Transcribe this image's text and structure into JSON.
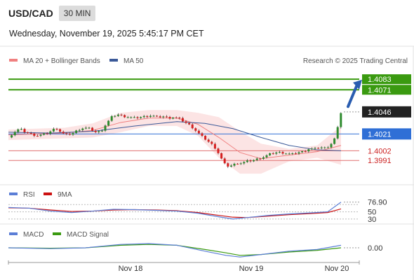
{
  "header": {
    "symbol": "USD/CAD",
    "timeframe": "30 MIN",
    "datetime": "Wednesday, November 19, 2025 5:45:17 PM CET"
  },
  "attribution": "Research © 2025 Trading Central",
  "colors": {
    "resistance": "#3a9a10",
    "pivot": "#2f6fd6",
    "support": "#e07070",
    "candle_up": "#2e8b2e",
    "candle_down": "#d62020",
    "ma20_band": "#f08080",
    "ma50": "#3b5998",
    "rsi": "#5b7ed6",
    "rsi_ma": "#cc1111",
    "macd": "#5b7ed6",
    "macd_signal": "#3a9a10",
    "arrow": "#2a5db0"
  },
  "chart_data": [
    {
      "type": "candlestick",
      "legend": [
        {
          "name": "MA 20 + Bollinger Bands",
          "color": "#f08080"
        },
        {
          "name": "MA 50",
          "color": "#3b5998"
        }
      ],
      "x_ticks": [
        "Nov 18",
        "Nov 19",
        "Nov 20"
      ],
      "ylim": [
        1.3965,
        1.4095
      ],
      "levels": [
        {
          "label": "1.4083",
          "value": 1.4083,
          "kind": "resistance"
        },
        {
          "label": "1.4071",
          "value": 1.4071,
          "kind": "resistance"
        },
        {
          "label": "1.4046",
          "value": 1.4046,
          "kind": "last"
        },
        {
          "label": "1.4021",
          "value": 1.4021,
          "kind": "pivot"
        },
        {
          "label": "1.4002",
          "value": 1.4002,
          "kind": "support"
        },
        {
          "label": "1.3991",
          "value": 1.3991,
          "kind": "support"
        }
      ],
      "close_path": [
        [
          0,
          1.4017
        ],
        [
          8,
          1.4023
        ],
        [
          16,
          1.4027
        ],
        [
          24,
          1.4023
        ],
        [
          32,
          1.4021
        ],
        [
          40,
          1.4019
        ],
        [
          48,
          1.402
        ],
        [
          56,
          1.4022
        ],
        [
          62,
          1.4025
        ],
        [
          68,
          1.4028
        ],
        [
          76,
          1.4022
        ],
        [
          84,
          1.402
        ],
        [
          92,
          1.4022
        ],
        [
          100,
          1.4026
        ],
        [
          108,
          1.4028
        ],
        [
          116,
          1.4027
        ],
        [
          124,
          1.4023
        ],
        [
          132,
          1.4024
        ],
        [
          140,
          1.4033
        ],
        [
          148,
          1.4041
        ],
        [
          156,
          1.4043
        ],
        [
          164,
          1.4041
        ],
        [
          172,
          1.404
        ],
        [
          180,
          1.4039
        ],
        [
          188,
          1.404
        ],
        [
          196,
          1.4041
        ],
        [
          204,
          1.4042
        ],
        [
          212,
          1.404
        ],
        [
          220,
          1.4041
        ],
        [
          228,
          1.4039
        ],
        [
          236,
          1.404
        ],
        [
          244,
          1.4038
        ],
        [
          252,
          1.4034
        ],
        [
          260,
          1.403
        ],
        [
          268,
          1.4024
        ],
        [
          276,
          1.4018
        ],
        [
          284,
          1.4013
        ],
        [
          290,
          1.4009
        ],
        [
          296,
          1.4004
        ],
        [
          302,
          1.3995
        ],
        [
          308,
          1.3987
        ],
        [
          314,
          1.3984
        ],
        [
          320,
          1.3986
        ],
        [
          326,
          1.3988
        ],
        [
          332,
          1.3988
        ],
        [
          340,
          1.399
        ],
        [
          348,
          1.3991
        ],
        [
          356,
          1.3993
        ],
        [
          364,
          1.3995
        ],
        [
          372,
          1.3998
        ],
        [
          380,
          1.4
        ],
        [
          388,
          1.4
        ],
        [
          396,
          1.3999
        ],
        [
          404,
          1.3998
        ],
        [
          412,
          1.4
        ],
        [
          420,
          1.4001
        ],
        [
          428,
          1.4004
        ],
        [
          436,
          1.4004
        ],
        [
          444,
          1.4006
        ],
        [
          452,
          1.4005
        ],
        [
          458,
          1.4008
        ],
        [
          464,
          1.4014
        ],
        [
          470,
          1.403
        ],
        [
          474,
          1.4046
        ]
      ],
      "ma20": [
        [
          0,
          1.402
        ],
        [
          40,
          1.4021
        ],
        [
          80,
          1.4022
        ],
        [
          120,
          1.4025
        ],
        [
          160,
          1.4034
        ],
        [
          200,
          1.4039
        ],
        [
          240,
          1.4039
        ],
        [
          270,
          1.4032
        ],
        [
          300,
          1.4017
        ],
        [
          330,
          1.4
        ],
        [
          360,
          1.3993
        ],
        [
          400,
          1.3997
        ],
        [
          440,
          1.4001
        ],
        [
          474,
          1.4008
        ]
      ],
      "bb_upper": [
        [
          0,
          1.4026
        ],
        [
          40,
          1.4027
        ],
        [
          80,
          1.4028
        ],
        [
          120,
          1.4033
        ],
        [
          160,
          1.4045
        ],
        [
          200,
          1.4048
        ],
        [
          240,
          1.4048
        ],
        [
          270,
          1.4045
        ],
        [
          300,
          1.404
        ],
        [
          330,
          1.4024
        ],
        [
          360,
          1.401
        ],
        [
          400,
          1.4004
        ],
        [
          440,
          1.4008
        ],
        [
          474,
          1.403
        ]
      ],
      "bb_lower": [
        [
          0,
          1.4014
        ],
        [
          40,
          1.4015
        ],
        [
          80,
          1.4016
        ],
        [
          120,
          1.4017
        ],
        [
          160,
          1.4023
        ],
        [
          200,
          1.403
        ],
        [
          240,
          1.403
        ],
        [
          270,
          1.4019
        ],
        [
          300,
          1.3994
        ],
        [
          330,
          1.3976
        ],
        [
          360,
          1.3976
        ],
        [
          400,
          1.399
        ],
        [
          440,
          1.3994
        ],
        [
          474,
          1.3986
        ]
      ],
      "ma50": [
        [
          0,
          1.4023
        ],
        [
          60,
          1.4022
        ],
        [
          120,
          1.4024
        ],
        [
          180,
          1.403
        ],
        [
          240,
          1.4035
        ],
        [
          280,
          1.4033
        ],
        [
          320,
          1.4027
        ],
        [
          360,
          1.4017
        ],
        [
          400,
          1.4008
        ],
        [
          440,
          1.4003
        ],
        [
          474,
          1.4002
        ]
      ]
    },
    {
      "type": "line",
      "legend": [
        {
          "name": "RSI",
          "color": "#5b7ed6"
        },
        {
          "name": "9MA",
          "color": "#cc1111"
        }
      ],
      "ylim": [
        20,
        90
      ],
      "y_ticks": [
        "76.90",
        "50",
        "30"
      ],
      "series": [
        {
          "name": "RSI",
          "points": [
            [
              0,
              62
            ],
            [
              30,
              60
            ],
            [
              60,
              52
            ],
            [
              90,
              48
            ],
            [
              120,
              52
            ],
            [
              150,
              57
            ],
            [
              180,
              56
            ],
            [
              210,
              54
            ],
            [
              240,
              52
            ],
            [
              270,
              46
            ],
            [
              300,
              36
            ],
            [
              320,
              30
            ],
            [
              340,
              34
            ],
            [
              370,
              40
            ],
            [
              400,
              44
            ],
            [
              430,
              47
            ],
            [
              455,
              50
            ],
            [
              474,
              76.9
            ]
          ]
        },
        {
          "name": "9MA",
          "points": [
            [
              0,
              61
            ],
            [
              30,
              60
            ],
            [
              60,
              55
            ],
            [
              90,
              51
            ],
            [
              120,
              52
            ],
            [
              150,
              55
            ],
            [
              180,
              56
            ],
            [
              210,
              55
            ],
            [
              240,
              53
            ],
            [
              270,
              48
            ],
            [
              300,
              40
            ],
            [
              320,
              35
            ],
            [
              340,
              34
            ],
            [
              370,
              38
            ],
            [
              400,
              42
            ],
            [
              430,
              45
            ],
            [
              455,
              48
            ],
            [
              474,
              58
            ]
          ]
        }
      ]
    },
    {
      "type": "line",
      "legend": [
        {
          "name": "MACD",
          "color": "#5b7ed6"
        },
        {
          "name": "MACD Signal",
          "color": "#3a9a10"
        }
      ],
      "ylim": [
        -0.0015,
        0.001
      ],
      "y_ticks": [
        "0.00"
      ],
      "series": [
        {
          "name": "MACD",
          "points": [
            [
              0,
              0.0
            ],
            [
              60,
              -0.0001
            ],
            [
              110,
              0.0
            ],
            [
              160,
              0.0004
            ],
            [
              200,
              0.0005
            ],
            [
              240,
              0.0003
            ],
            [
              280,
              -0.0004
            ],
            [
              310,
              -0.0009
            ],
            [
              330,
              -0.0011
            ],
            [
              360,
              -0.0008
            ],
            [
              400,
              -0.0004
            ],
            [
              440,
              -0.0002
            ],
            [
              474,
              0.0003
            ]
          ]
        },
        {
          "name": "MACD Signal",
          "points": [
            [
              0,
              0.0
            ],
            [
              60,
              -5e-05
            ],
            [
              110,
              0.0
            ],
            [
              160,
              0.0003
            ],
            [
              200,
              0.0004
            ],
            [
              240,
              0.0003
            ],
            [
              280,
              -0.0002
            ],
            [
              310,
              -0.0006
            ],
            [
              330,
              -0.0009
            ],
            [
              360,
              -0.0008
            ],
            [
              400,
              -0.0005
            ],
            [
              440,
              -0.0003
            ],
            [
              474,
              0.0
            ]
          ]
        }
      ]
    }
  ]
}
